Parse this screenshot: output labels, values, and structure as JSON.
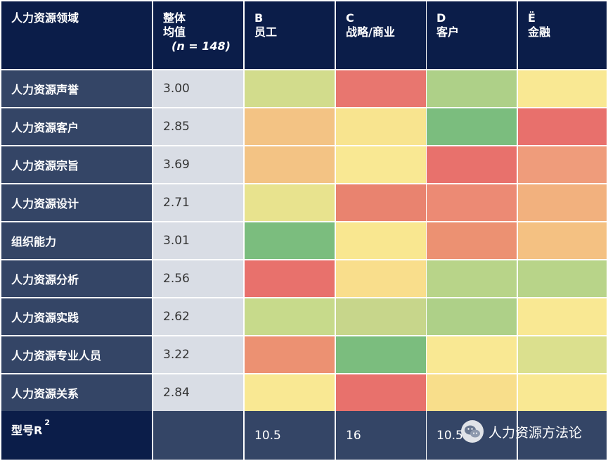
{
  "header": {
    "col0": "人力资源领域",
    "col1_line1": "整体",
    "col1_line2": "均值",
    "col1_line3": "(n = 148)",
    "columns": [
      {
        "letter": "B",
        "label": "员工"
      },
      {
        "letter": "C",
        "label": "战略/商业"
      },
      {
        "letter": "D",
        "label": "客户"
      },
      {
        "letter": "Ë",
        "label": "金融"
      }
    ]
  },
  "chart_data": {
    "type": "heatmap",
    "rows": [
      {
        "label": "人力资源声誉",
        "mean": "3.00",
        "colors": [
          "#d2dc8c",
          "#e8766f",
          "#aed088",
          "#f9e893"
        ]
      },
      {
        "label": "人力资源客户",
        "mean": "2.85",
        "colors": [
          "#f3c384",
          "#f8e48f",
          "#7bbd7e",
          "#e8706c"
        ]
      },
      {
        "label": "人力资源宗旨",
        "mean": "3.69",
        "colors": [
          "#f3c384",
          "#f9e893",
          "#e8716c",
          "#ef9c7b"
        ]
      },
      {
        "label": "人力资源设计",
        "mean": "2.71",
        "colors": [
          "#e8e38e",
          "#e9836f",
          "#ec8a74",
          "#f2b17e"
        ]
      },
      {
        "label": "组织能力",
        "mean": "3.01",
        "colors": [
          "#7bbd7e",
          "#f9e790",
          "#ec9172",
          "#f4c182"
        ]
      },
      {
        "label": "人力资源分析",
        "mean": "2.56",
        "colors": [
          "#e8716c",
          "#f9de8c",
          "#b8d489",
          "#b8d489"
        ]
      },
      {
        "label": "人力资源实践",
        "mean": "2.62",
        "colors": [
          "#c7da8b",
          "#c7d68b",
          "#aed088",
          "#f9e893"
        ]
      },
      {
        "label": "人力资源专业人员",
        "mean": "3.22",
        "colors": [
          "#ec9172",
          "#7bbd7e",
          "#f9e893",
          "#dbe08e"
        ]
      },
      {
        "label": "人力资源关系",
        "mean": "2.84",
        "colors": [
          "#f9e893",
          "#e8716c",
          "#f8de8b",
          "#f9e893"
        ]
      }
    ]
  },
  "footer": {
    "label": "型号R",
    "label_sup": "2",
    "values": [
      "10.5",
      "16",
      "10.5",
      ""
    ]
  },
  "watermark": {
    "text": "人力资源方法论",
    "icon": "wechat-icon"
  }
}
